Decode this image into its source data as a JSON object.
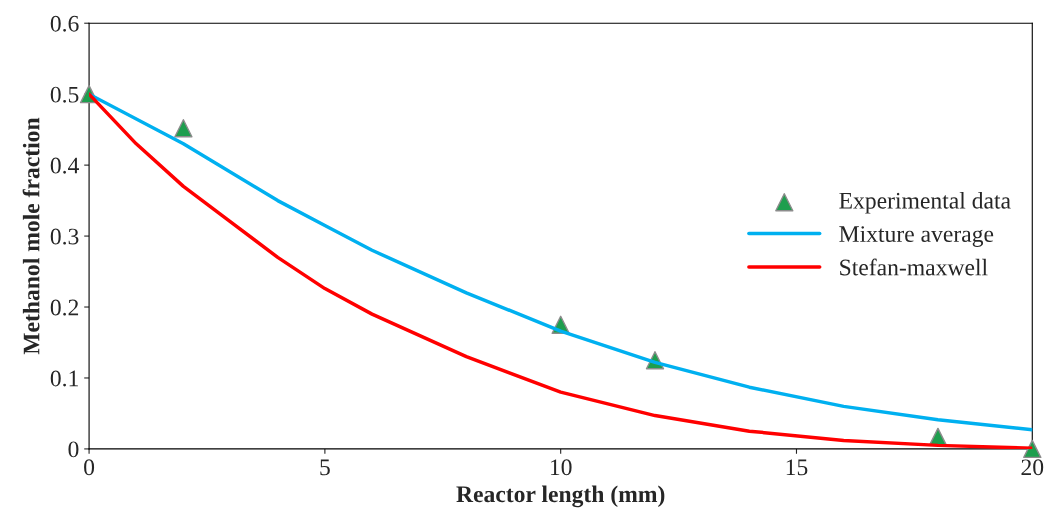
{
  "chart_data": {
    "type": "line",
    "xlabel": "Reactor length (mm)",
    "ylabel": "Methanol mole fraction",
    "xlim": [
      0,
      20
    ],
    "xticks": [
      0,
      5,
      10,
      15,
      20
    ],
    "ylim": [
      0,
      0.6
    ],
    "yticks": [
      0,
      0.1,
      0.2,
      0.3,
      0.4,
      0.5,
      0.6
    ],
    "grid": false,
    "legend": "right",
    "series": [
      {
        "name": "Experimental data",
        "type": "scatter",
        "marker": "triangle",
        "color": "#1e9e4e",
        "x": [
          0,
          2,
          10,
          12,
          18,
          20
        ],
        "values": [
          0.5,
          0.452,
          0.175,
          0.125,
          0.017,
          0
        ]
      },
      {
        "name": "Mixture average",
        "marker": "none",
        "color": "#00b0f0",
        "x": [
          0,
          2,
          4,
          5,
          6,
          8,
          10,
          12,
          14,
          16,
          18,
          20
        ],
        "values": [
          0.5,
          0.43,
          0.35,
          0.315,
          0.28,
          0.22,
          0.166,
          0.122,
          0.087,
          0.06,
          0.041,
          0.027
        ]
      },
      {
        "name": "Stefan-maxwell",
        "marker": "none",
        "color": "#ff0000",
        "x": [
          0,
          1,
          2,
          3,
          4,
          5,
          6,
          8,
          10,
          12,
          14,
          16,
          18,
          20
        ],
        "values": [
          0.5,
          0.43,
          0.37,
          0.32,
          0.27,
          0.226,
          0.19,
          0.13,
          0.08,
          0.047,
          0.025,
          0.012,
          0.005,
          0.001
        ]
      }
    ]
  }
}
